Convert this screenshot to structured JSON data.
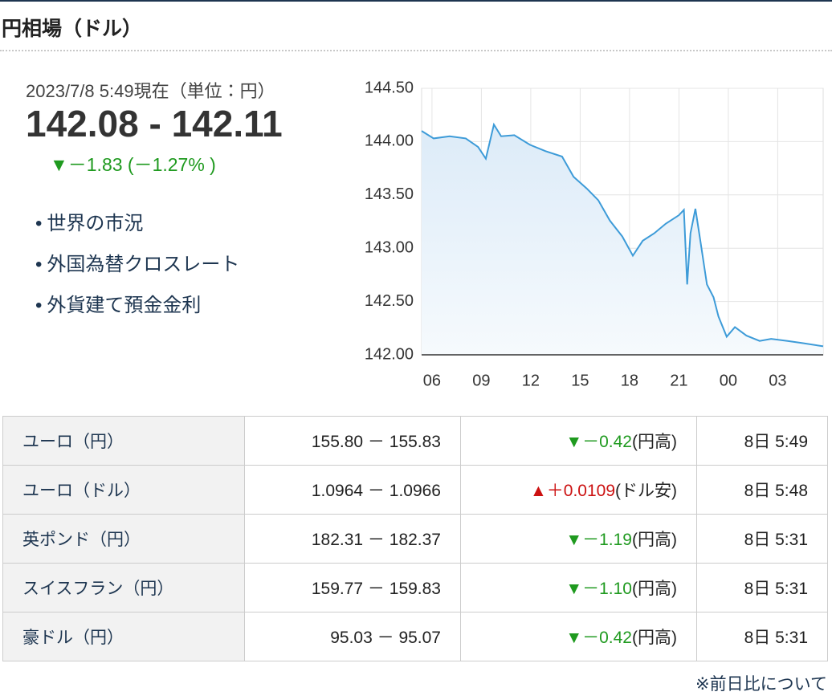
{
  "header": {
    "title": "円相場（ドル）"
  },
  "quote": {
    "timestamp": "2023/7/8 5:49現在（単位：円）",
    "price": "142.08 - 142.11",
    "change": "▼－1.83 (－1.27% )",
    "change_color": "#1f9a1f"
  },
  "links": [
    "世界の市況",
    "外国為替クロスレート",
    "外貨建て預金金利"
  ],
  "chart_data": {
    "type": "line",
    "x": [
      5.37,
      6.1,
      7.07,
      8.05,
      8.8,
      9.27,
      9.76,
      10.2,
      11.0,
      11.95,
      12.9,
      13.9,
      14.6,
      15.4,
      16.1,
      16.8,
      17.56,
      18.2,
      18.8,
      19.5,
      20.2,
      21.0,
      21.3,
      21.5,
      21.7,
      22.0,
      22.3,
      22.7,
      23.1,
      23.4,
      23.9,
      24.4,
      25.1,
      25.9,
      26.6,
      27.6,
      28.5,
      29.76
    ],
    "series": [
      {
        "color": "#3d9bd8",
        "values": [
          144.1,
          144.03,
          144.05,
          144.03,
          143.95,
          143.84,
          144.16,
          144.05,
          144.06,
          143.97,
          143.91,
          143.86,
          143.67,
          143.56,
          143.45,
          143.26,
          143.11,
          142.93,
          143.07,
          143.14,
          143.23,
          143.31,
          143.36,
          142.66,
          143.14,
          143.37,
          143.07,
          142.66,
          142.54,
          142.36,
          142.17,
          142.26,
          142.18,
          142.13,
          142.15,
          142.13,
          142.11,
          142.08
        ]
      }
    ],
    "xlim": [
      5.37,
      29.76
    ],
    "xticks": [
      {
        "value": 6,
        "label": "06"
      },
      {
        "value": 9,
        "label": "09"
      },
      12,
      15,
      18,
      21,
      {
        "value": 24,
        "label": "00"
      },
      {
        "value": 27,
        "label": "03"
      }
    ],
    "ylim": [
      142,
      144.5
    ],
    "yticks": [
      {
        "value": 144.5,
        "label": "144.50"
      },
      {
        "value": 144,
        "label": "144.00"
      },
      {
        "value": 143.5,
        "label": "143.50"
      },
      {
        "value": 143,
        "label": "143.00"
      },
      {
        "value": 142.5,
        "label": "142.50"
      },
      {
        "value": 142,
        "label": "142.00"
      }
    ],
    "grid": true
  },
  "table": {
    "rows": [
      {
        "name": "ユーロ（円）",
        "rate": "155.80 － 155.83",
        "change": "▼－0.42",
        "change_color": "#1f9a1f",
        "note": "(円高)",
        "time": "8日 5:49"
      },
      {
        "name": "ユーロ（ドル）",
        "rate": "1.0964 － 1.0966",
        "change": "▲＋0.0109",
        "change_color": "#cc1111",
        "note": "(ドル安)",
        "time": "8日 5:48"
      },
      {
        "name": "英ポンド（円）",
        "rate": "182.31 － 182.37",
        "change": "▼－1.19",
        "change_color": "#1f9a1f",
        "note": "(円高)",
        "time": "8日 5:31"
      },
      {
        "name": "スイスフラン（円）",
        "rate": "159.77 － 159.83",
        "change": "▼－1.10",
        "change_color": "#1f9a1f",
        "note": "(円高)",
        "time": "8日 5:31"
      },
      {
        "name": "豪ドル（円）",
        "rate": "95.03 － 95.07",
        "change": "▼－0.42",
        "change_color": "#1f9a1f",
        "note": "(円高)",
        "time": "8日 5:31"
      }
    ]
  },
  "footer": {
    "note": "※前日比について"
  }
}
